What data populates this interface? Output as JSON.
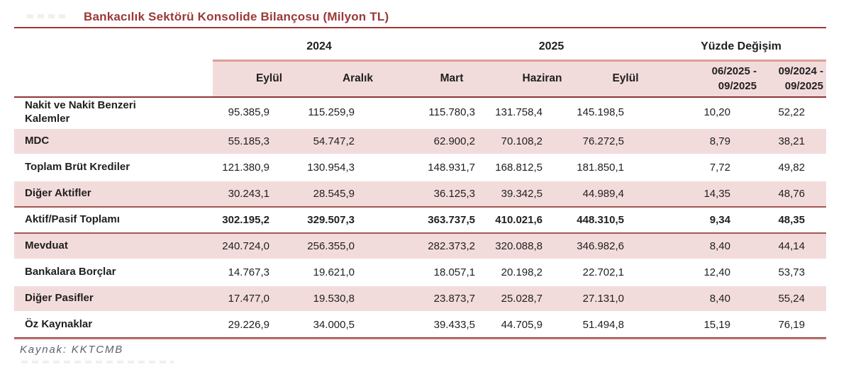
{
  "title": "Bankacılık Sektörü Konsolide Bilançosu (Milyon TL)",
  "source_note": "Kaynak: KKTCMB",
  "colors": {
    "accent_maroon": "#9c3836",
    "header_band_pink": "#f2dcdb",
    "header_band_top_border": "#dd9e97",
    "header_rule": "#8e3634",
    "total_row_border": "#a35755",
    "table_bottom_line": "#9a4644",
    "table_bottom_accent": "#edcbc8",
    "body_text": "#1f1f1f",
    "source_text": "#5a6270"
  },
  "table": {
    "year_groups": [
      {
        "label": "2024"
      },
      {
        "label": "2025"
      },
      {
        "label": "Yüzde Değişim"
      }
    ],
    "period_headers": [
      "Eylül",
      "Aralık",
      "Mart",
      "Haziran",
      "Eylül"
    ],
    "change_headers": [
      {
        "line1": "06/2025 -",
        "line2": "09/2025"
      },
      {
        "line1": "09/2024 -",
        "line2": "09/2025"
      }
    ],
    "rows": [
      {
        "label": "Nakit ve Nakit Benzeri Kalemler",
        "shaded": false,
        "total": false,
        "values": [
          "95.385,9",
          "115.259,9",
          "115.780,3",
          "131.758,4",
          "145.198,5",
          "10,20",
          "52,22"
        ]
      },
      {
        "label": "MDC",
        "shaded": true,
        "total": false,
        "values": [
          "55.185,3",
          "54.747,2",
          "62.900,2",
          "70.108,2",
          "76.272,5",
          "8,79",
          "38,21"
        ]
      },
      {
        "label": "Toplam Brüt Krediler",
        "shaded": false,
        "total": false,
        "values": [
          "121.380,9",
          "130.954,3",
          "148.931,7",
          "168.812,5",
          "181.850,1",
          "7,72",
          "49,82"
        ]
      },
      {
        "label": "Diğer Aktifler",
        "shaded": true,
        "total": false,
        "values": [
          "30.243,1",
          "28.545,9",
          "36.125,3",
          "39.342,5",
          "44.989,4",
          "14,35",
          "48,76"
        ]
      },
      {
        "label": "Aktif/Pasif Toplamı",
        "shaded": false,
        "total": true,
        "values": [
          "302.195,2",
          "329.507,3",
          "363.737,5",
          "410.021,6",
          "448.310,5",
          "9,34",
          "48,35"
        ]
      },
      {
        "label": "Mevduat",
        "shaded": true,
        "total": false,
        "values": [
          "240.724,0",
          "256.355,0",
          "282.373,2",
          "320.088,8",
          "346.982,6",
          "8,40",
          "44,14"
        ]
      },
      {
        "label": "Bankalara Borçlar",
        "shaded": false,
        "total": false,
        "values": [
          "14.767,3",
          "19.621,0",
          "18.057,1",
          "20.198,2",
          "22.702,1",
          "12,40",
          "53,73"
        ]
      },
      {
        "label": "Diğer Pasifler",
        "shaded": true,
        "total": false,
        "values": [
          "17.477,0",
          "19.530,8",
          "23.873,7",
          "25.028,7",
          "27.131,0",
          "8,40",
          "55,24"
        ]
      },
      {
        "label": "Öz Kaynaklar",
        "shaded": false,
        "total": false,
        "values": [
          "29.226,9",
          "34.000,5",
          "39.433,5",
          "44.705,9",
          "51.494,8",
          "15,19",
          "76,19"
        ]
      }
    ]
  }
}
